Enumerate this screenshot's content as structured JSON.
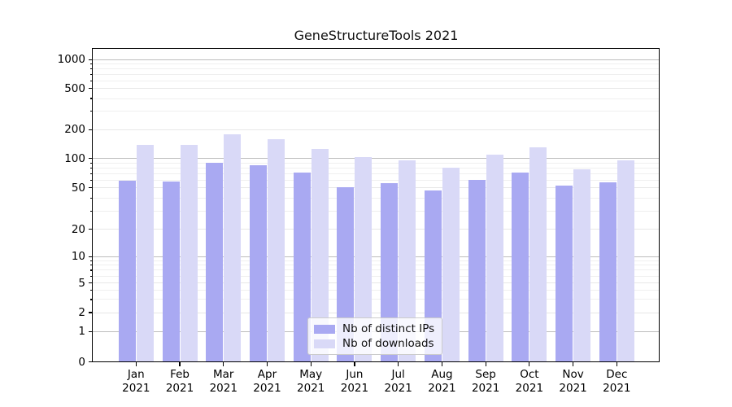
{
  "chart_data": {
    "type": "bar",
    "title": "GeneStructureTools 2021",
    "year_label": "2021",
    "months": [
      "Jan",
      "Feb",
      "Mar",
      "Apr",
      "May",
      "Jun",
      "Jul",
      "Aug",
      "Sep",
      "Oct",
      "Nov",
      "Dec"
    ],
    "categories": [
      "Jan 2021",
      "Feb 2021",
      "Mar 2021",
      "Apr 2021",
      "May 2021",
      "Jun 2021",
      "Jul 2021",
      "Aug 2021",
      "Sep 2021",
      "Oct 2021",
      "Nov 2021",
      "Dec 2021"
    ],
    "series": [
      {
        "name": "Nb of distinct IPs",
        "color": "#a9a9f2",
        "values": [
          59,
          58,
          91,
          86,
          72,
          51,
          56,
          47,
          60,
          72,
          53,
          57
        ]
      },
      {
        "name": "Nb of downloads",
        "color": "#d9d9f7",
        "values": [
          138,
          138,
          180,
          160,
          125,
          103,
          95,
          80,
          110,
          131,
          78,
          95
        ]
      }
    ],
    "yscale": "symlog",
    "yticks": [
      0,
      1,
      2,
      5,
      10,
      20,
      50,
      100,
      200,
      500,
      1000
    ],
    "ylim": [
      0,
      1300
    ],
    "grid": true,
    "legend_position": "lower center",
    "axis_color": "#000000",
    "major_grid_color": "#bdbdbd",
    "minor_grid_color": "#efefef"
  }
}
